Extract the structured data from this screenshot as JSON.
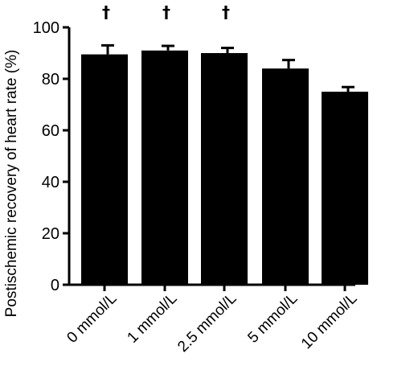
{
  "chart_data": {
    "type": "bar",
    "categories": [
      "0 mmol/L",
      "1 mmol/L",
      "2.5 mmol/L",
      "5 mmol/L",
      "10 mmol/L"
    ],
    "values": [
      89.5,
      91,
      90,
      84,
      75
    ],
    "errors": [
      3.5,
      1.8,
      2,
      3.3,
      1.8
    ],
    "significance_markers": [
      "†",
      "†",
      "†",
      "",
      ""
    ],
    "ylabel": "Postischemic recovery of heart rate (%)",
    "xlabel": "",
    "ylim": [
      0,
      100
    ],
    "yticks": [
      "0",
      "20",
      "40",
      "60",
      "80",
      "100"
    ],
    "bar_color": "#000000",
    "grid": false
  }
}
